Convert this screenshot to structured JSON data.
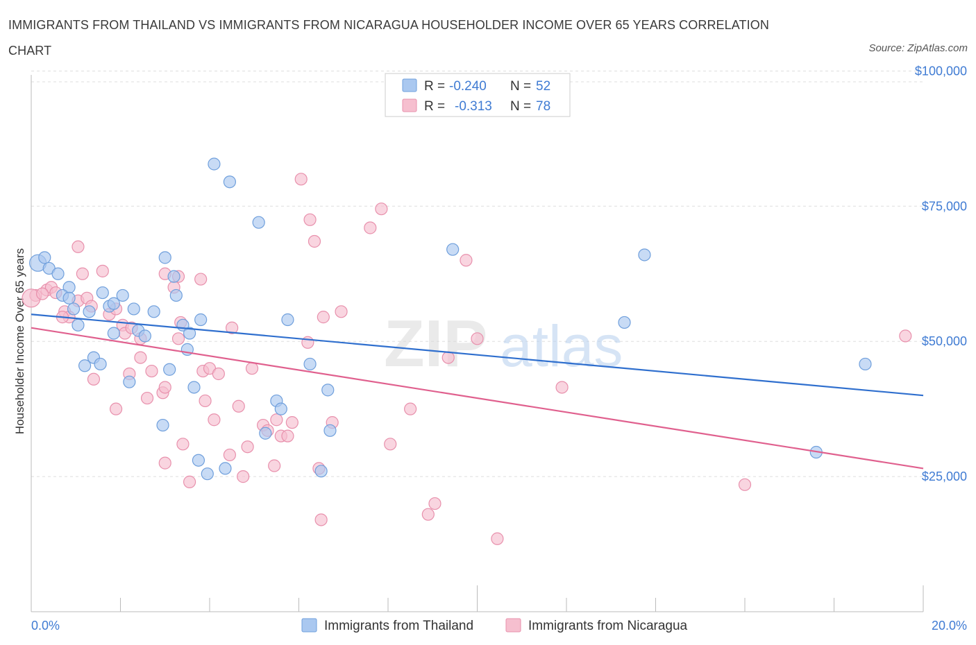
{
  "title": "IMMIGRANTS FROM THAILAND VS IMMIGRANTS FROM NICARAGUA HOUSEHOLDER INCOME OVER 65 YEARS CORRELATION CHART",
  "source": "Source: ZipAtlas.com",
  "watermark": {
    "zip": "ZIP",
    "atlas": "atlas"
  },
  "colors": {
    "thailand_fill": "#aac8f0",
    "thailand_stroke": "#6f9fdc",
    "thailand_line": "#2f6fce",
    "nicaragua_fill": "#f6bfcf",
    "nicaragua_stroke": "#e890ac",
    "nicaragua_line": "#e0608e",
    "tick_label": "#3f7bd3",
    "grid": "#dddddd"
  },
  "legend": {
    "rows": [
      {
        "r_label": "R = ",
        "r_value": "-0.240",
        "n_label": "N = ",
        "n_value": "52"
      },
      {
        "r_label": "R = ",
        "r_value": "-0.313",
        "n_label": "N = ",
        "n_value": "78"
      }
    ]
  },
  "chart_data": {
    "type": "scatter",
    "title": "IMMIGRANTS FROM THAILAND VS IMMIGRANTS FROM NICARAGUA HOUSEHOLDER INCOME OVER 65 YEARS CORRELATION CHART",
    "xlabel": "",
    "ylabel": "Householder Income Over 65 years",
    "xlim": [
      0,
      20
    ],
    "ylim": [
      0,
      100000
    ],
    "x_tick_labels": [
      "0.0%",
      "20.0%"
    ],
    "y_ticks": [
      25000,
      50000,
      75000,
      100000
    ],
    "y_tick_labels": [
      "$25,000",
      "$50,000",
      "$75,000",
      "$100,000"
    ],
    "grid": true,
    "legend_position": "top-center",
    "series": [
      {
        "name": "Immigrants from Thailand",
        "R": -0.24,
        "N": 52,
        "trend": {
          "x": [
            0,
            20
          ],
          "y": [
            55000,
            40000
          ]
        },
        "points": [
          [
            0.15,
            64500
          ],
          [
            0.3,
            65500
          ],
          [
            0.4,
            63500
          ],
          [
            0.6,
            62500
          ],
          [
            0.85,
            60000
          ],
          [
            0.7,
            58500
          ],
          [
            0.95,
            56000
          ],
          [
            0.85,
            58000
          ],
          [
            1.05,
            53000
          ],
          [
            1.3,
            55500
          ],
          [
            1.6,
            59000
          ],
          [
            1.75,
            56500
          ],
          [
            1.85,
            57000
          ],
          [
            2.05,
            58500
          ],
          [
            2.3,
            56000
          ],
          [
            2.75,
            55500
          ],
          [
            1.85,
            51500
          ],
          [
            2.4,
            52000
          ],
          [
            2.55,
            51000
          ],
          [
            1.4,
            47000
          ],
          [
            1.55,
            45800
          ],
          [
            1.2,
            45500
          ],
          [
            2.2,
            42500
          ],
          [
            3.0,
            65500
          ],
          [
            3.2,
            62000
          ],
          [
            3.25,
            58500
          ],
          [
            3.5,
            48500
          ],
          [
            3.4,
            53000
          ],
          [
            3.55,
            51500
          ],
          [
            3.8,
            54000
          ],
          [
            4.1,
            82800
          ],
          [
            4.45,
            79500
          ],
          [
            5.1,
            72000
          ],
          [
            3.1,
            44800
          ],
          [
            3.65,
            41500
          ],
          [
            2.95,
            34500
          ],
          [
            3.75,
            28000
          ],
          [
            3.95,
            25500
          ],
          [
            4.35,
            26500
          ],
          [
            5.5,
            39000
          ],
          [
            5.6,
            37500
          ],
          [
            5.25,
            33000
          ],
          [
            5.75,
            54000
          ],
          [
            6.25,
            45800
          ],
          [
            6.65,
            41000
          ],
          [
            6.7,
            33500
          ],
          [
            6.5,
            26000
          ],
          [
            9.45,
            67000
          ],
          [
            13.3,
            53500
          ],
          [
            13.75,
            66000
          ],
          [
            18.7,
            45800
          ],
          [
            17.6,
            29500
          ]
        ]
      },
      {
        "name": "Immigrants from Nicaragua",
        "R": -0.313,
        "N": 78,
        "trend": {
          "x": [
            0,
            20
          ],
          "y": [
            52500,
            26500
          ]
        },
        "points": [
          [
            0.1,
            58500
          ],
          [
            0.35,
            59500
          ],
          [
            0.45,
            60000
          ],
          [
            0.55,
            59000
          ],
          [
            0.75,
            55500
          ],
          [
            0.85,
            54500
          ],
          [
            0.7,
            54500
          ],
          [
            1.05,
            57500
          ],
          [
            1.25,
            58000
          ],
          [
            1.35,
            56500
          ],
          [
            1.05,
            67500
          ],
          [
            1.15,
            62500
          ],
          [
            1.6,
            63000
          ],
          [
            1.75,
            55000
          ],
          [
            1.9,
            56000
          ],
          [
            2.05,
            53000
          ],
          [
            2.1,
            51500
          ],
          [
            2.25,
            52500
          ],
          [
            2.45,
            50500
          ],
          [
            2.45,
            47000
          ],
          [
            1.4,
            43000
          ],
          [
            1.9,
            37500
          ],
          [
            2.2,
            44000
          ],
          [
            2.6,
            39500
          ],
          [
            2.7,
            44500
          ],
          [
            2.95,
            40500
          ],
          [
            3.0,
            41500
          ],
          [
            3.0,
            27500
          ],
          [
            3.2,
            60000
          ],
          [
            3.0,
            62500
          ],
          [
            3.3,
            62000
          ],
          [
            3.35,
            53500
          ],
          [
            3.3,
            50500
          ],
          [
            3.8,
            61500
          ],
          [
            3.85,
            44500
          ],
          [
            3.9,
            39000
          ],
          [
            4.0,
            45000
          ],
          [
            4.1,
            35500
          ],
          [
            4.2,
            44000
          ],
          [
            3.4,
            31000
          ],
          [
            3.55,
            24000
          ],
          [
            4.45,
            29000
          ],
          [
            4.5,
            52500
          ],
          [
            4.65,
            38000
          ],
          [
            4.75,
            25000
          ],
          [
            4.85,
            30500
          ],
          [
            4.95,
            45000
          ],
          [
            5.2,
            34500
          ],
          [
            5.3,
            33500
          ],
          [
            5.45,
            27000
          ],
          [
            5.5,
            35500
          ],
          [
            5.6,
            32500
          ],
          [
            5.75,
            32500
          ],
          [
            5.85,
            35000
          ],
          [
            6.05,
            80000
          ],
          [
            6.2,
            49800
          ],
          [
            6.25,
            72500
          ],
          [
            6.35,
            68500
          ],
          [
            6.45,
            26500
          ],
          [
            6.5,
            17000
          ],
          [
            6.55,
            54500
          ],
          [
            6.75,
            35000
          ],
          [
            6.95,
            55500
          ],
          [
            7.6,
            71000
          ],
          [
            7.85,
            74500
          ],
          [
            8.05,
            31000
          ],
          [
            8.5,
            37500
          ],
          [
            8.9,
            18000
          ],
          [
            9.05,
            20000
          ],
          [
            9.35,
            47000
          ],
          [
            9.75,
            65000
          ],
          [
            10.0,
            50500
          ],
          [
            10.45,
            13500
          ],
          [
            11.9,
            41500
          ],
          [
            16.0,
            23500
          ],
          [
            19.6,
            51000
          ],
          [
            0.0,
            58000
          ],
          [
            0.25,
            58800
          ]
        ]
      }
    ]
  },
  "bottom_legend": [
    {
      "label": "Immigrants from Thailand"
    },
    {
      "label": "Immigrants from Nicaragua"
    }
  ]
}
